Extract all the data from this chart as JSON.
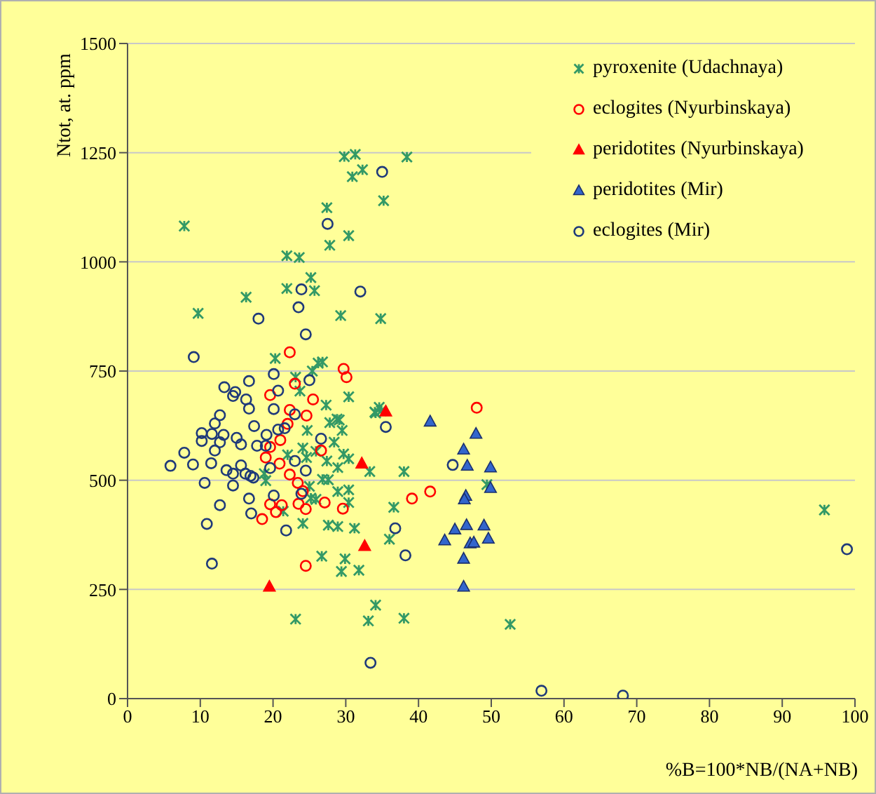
{
  "chart_data": {
    "type": "scatter",
    "xlabel": "%B=100*NB/(NA+NB)",
    "ylabel": "Ntot, at. ppm",
    "xlim": [
      0,
      100
    ],
    "xticks": [
      0,
      10,
      20,
      30,
      40,
      50,
      60,
      70,
      80,
      90,
      100
    ],
    "ylim": [
      0,
      1500
    ],
    "yticks": [
      0,
      250,
      500,
      750,
      1000,
      1250,
      1500
    ],
    "grid": "y",
    "legend": "top right",
    "series": [
      {
        "name": "pyroxenite (Udachnaya)",
        "color": "#339966",
        "marker": "cross",
        "x": [
          29.8,
          31.3,
          38.4,
          32.3,
          30.9,
          35.2,
          27.4,
          7.8,
          30.4,
          27.8,
          21.9,
          23.6,
          25.2,
          21.9,
          25.7,
          16.3,
          9.7,
          29.3,
          34.8,
          20.3,
          26.2,
          26.8,
          25.4,
          23.1,
          23.7,
          30.4,
          27.3,
          34.6,
          34.1,
          28.8,
          24.7,
          27.8,
          29.1,
          29.5,
          28.4,
          24.1,
          25.9,
          22.0,
          24.6,
          29.7,
          30.4,
          27.4,
          28.9,
          33.3,
          38.0,
          18.8,
          19.0,
          26.8,
          27.6,
          25.0,
          28.9,
          30.4,
          25.2,
          25.9,
          30.4,
          21.4,
          24.1,
          27.6,
          28.9,
          31.2,
          36.6,
          36.0,
          26.7,
          29.9,
          29.4,
          31.8,
          34.1,
          23.1,
          33.1,
          38.0,
          34.0,
          34.9,
          49.4,
          52.6,
          95.8
        ],
        "values": [
          1241,
          1246,
          1240,
          1211,
          1195,
          1140,
          1124,
          1082,
          1060,
          1038,
          1014,
          1010,
          964,
          939,
          934,
          919,
          882,
          877,
          870,
          779,
          768,
          771,
          750,
          736,
          704,
          691,
          672,
          667,
          654,
          640,
          614,
          632,
          638,
          614,
          587,
          574,
          566,
          558,
          552,
          560,
          549,
          544,
          529,
          520,
          520,
          515,
          499,
          502,
          501,
          486,
          474,
          478,
          459,
          456,
          449,
          429,
          401,
          397,
          394,
          390,
          438,
          365,
          326,
          320,
          291,
          294,
          214,
          182,
          178,
          184,
          656,
          659,
          490,
          170,
          432
        ]
      },
      {
        "name": "eclogites (Nyurbinskaya)",
        "color": "#ff0000",
        "marker": "circle",
        "x": [
          22.3,
          29.7,
          30.1,
          23.0,
          19.6,
          25.5,
          22.3,
          24.6,
          22.0,
          21.0,
          19.6,
          19.0,
          26.6,
          20.9,
          22.3,
          23.4,
          24.1,
          19.6,
          21.2,
          20.4,
          18.5,
          23.5,
          24.5,
          27.1,
          29.6,
          24.5,
          39.1,
          41.6,
          48.0
        ],
        "values": [
          793,
          755,
          736,
          721,
          695,
          685,
          661,
          648,
          629,
          592,
          576,
          552,
          568,
          538,
          513,
          494,
          475,
          445,
          443,
          427,
          411,
          446,
          434,
          449,
          435,
          304,
          458,
          474,
          666
        ]
      },
      {
        "name": "peridotites (Nyurbinskaya)",
        "color": "#ff0000",
        "marker": "triangle",
        "x": [
          35.5,
          32.2,
          32.6,
          19.5
        ],
        "values": [
          657,
          538,
          349,
          256
        ]
      },
      {
        "name": "peridotites (Mir)",
        "color": "#3366cc",
        "marker": "triangle",
        "x": [
          41.6,
          47.9,
          46.2,
          46.7,
          49.9,
          49.9,
          46.5,
          46.3,
          46.6,
          49.0,
          45.0,
          43.6,
          49.6,
          47.1,
          47.6,
          46.2,
          46.2
        ],
        "values": [
          634,
          606,
          570,
          533,
          529,
          482,
          464,
          456,
          397,
          396,
          387,
          362,
          366,
          355,
          357,
          320,
          256
        ]
      },
      {
        "name": "eclogites (Mir)",
        "color": "#1f3a7a",
        "marker": "circle",
        "x": [
          35.0,
          27.5,
          23.9,
          32.0,
          23.5,
          18.0,
          24.5,
          9.1,
          20.1,
          13.3,
          14.8,
          14.5,
          16.7,
          16.3,
          20.7,
          25.0,
          16.7,
          20.1,
          23.0,
          12.7,
          12.0,
          10.2,
          11.6,
          13.2,
          10.2,
          15.0,
          12.7,
          12.0,
          15.6,
          17.4,
          19.1,
          20.7,
          21.6,
          17.8,
          19.0,
          7.8,
          5.9,
          9.0,
          11.5,
          13.6,
          14.5,
          15.6,
          16.2,
          16.9,
          17.3,
          19.6,
          23.0,
          24.5,
          26.6,
          10.6,
          14.5,
          20.1,
          23.9,
          16.7,
          12.7,
          17.0,
          10.9,
          21.8,
          11.6,
          35.5,
          36.8,
          38.2,
          33.4,
          44.7,
          56.9,
          68.1,
          98.9
        ],
        "values": [
          1206,
          1087,
          937,
          932,
          896,
          870,
          834,
          782,
          743,
          713,
          702,
          693,
          727,
          685,
          705,
          729,
          664,
          663,
          651,
          649,
          630,
          608,
          606,
          604,
          590,
          597,
          587,
          568,
          582,
          624,
          604,
          616,
          619,
          579,
          579,
          563,
          533,
          536,
          539,
          523,
          515,
          534,
          515,
          510,
          506,
          528,
          544,
          522,
          595,
          494,
          488,
          465,
          469,
          458,
          443,
          424,
          400,
          385,
          309,
          622,
          390,
          328,
          82,
          535,
          18,
          7,
          342
        ]
      }
    ]
  }
}
